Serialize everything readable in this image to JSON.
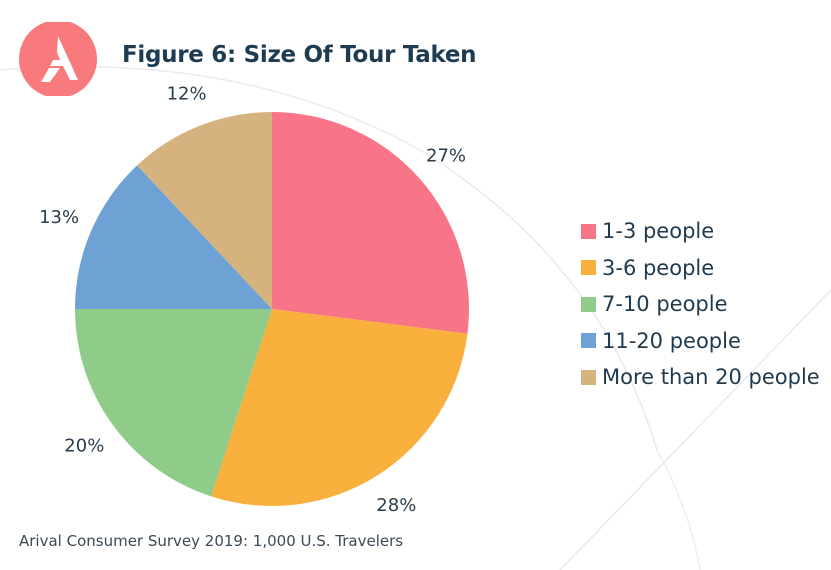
{
  "header": {
    "logo_icon": "arival-logo-icon",
    "title": "Figure 6: Size Of Tour Taken"
  },
  "chart_data": {
    "type": "pie",
    "title": "Figure 6: Size Of Tour Taken",
    "start_angle_deg": 0,
    "direction": "clockwise",
    "slices": [
      {
        "label": "1-3 people",
        "value": 27,
        "value_label": "27%",
        "color": "#f87588"
      },
      {
        "label": "3-6 people",
        "value": 28,
        "value_label": "28%",
        "color": "#f9b03c"
      },
      {
        "label": "7-10 people",
        "value": 20,
        "value_label": "20%",
        "color": "#8fcc8a"
      },
      {
        "label": "11-20 people",
        "value": 13,
        "value_label": "13%",
        "color": "#6fa2d4"
      },
      {
        "label": "More than 20 people",
        "value": 12,
        "value_label": "12%",
        "color": "#d5b27e"
      }
    ],
    "legend": {
      "position": "right",
      "entries": [
        "1-3 people",
        "3-6 people",
        "7-10 people",
        "11-20 people",
        "More than 20 people"
      ]
    }
  },
  "footer": {
    "source": "Arival Consumer Survey 2019: 1,000 U.S. Travelers"
  },
  "colors": {
    "brand": "#f87a7d",
    "title_text": "#1d3c52",
    "background_lines": "#e6e8ec"
  }
}
